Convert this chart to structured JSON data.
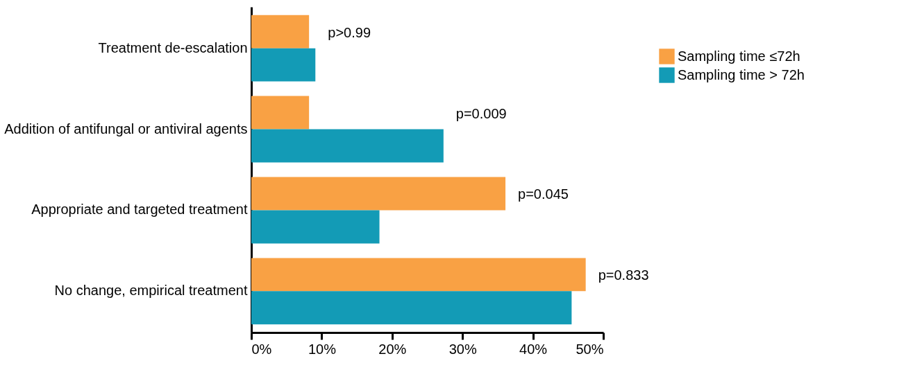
{
  "chart_data": {
    "type": "bar",
    "orientation": "horizontal",
    "categories": [
      "Treatment de-escalation",
      "Addition of antifungal or antiviral agents",
      "Appropriate and targeted treatment",
      "No change, empirical treatment"
    ],
    "series": [
      {
        "name": "Sampling time ≤72h",
        "color": "#f9a144",
        "values": [
          8.2,
          8.2,
          36.1,
          47.5
        ]
      },
      {
        "name": "Sampling time > 72h",
        "color": "#139bb6",
        "values": [
          9.1,
          27.3,
          18.2,
          45.5
        ]
      }
    ],
    "xlim": [
      0,
      50
    ],
    "xticks": [
      {
        "value": 0,
        "label": "0%"
      },
      {
        "value": 10,
        "label": "10%"
      },
      {
        "value": 20,
        "label": "20%"
      },
      {
        "value": 30,
        "label": "30%"
      },
      {
        "value": 40,
        "label": "40%"
      },
      {
        "value": 50,
        "label": "50%"
      }
    ],
    "grid": false,
    "legend": "right",
    "annotations": [
      "p>0.99",
      "p=0.009",
      "p=0.045",
      "p=0.833"
    ]
  }
}
